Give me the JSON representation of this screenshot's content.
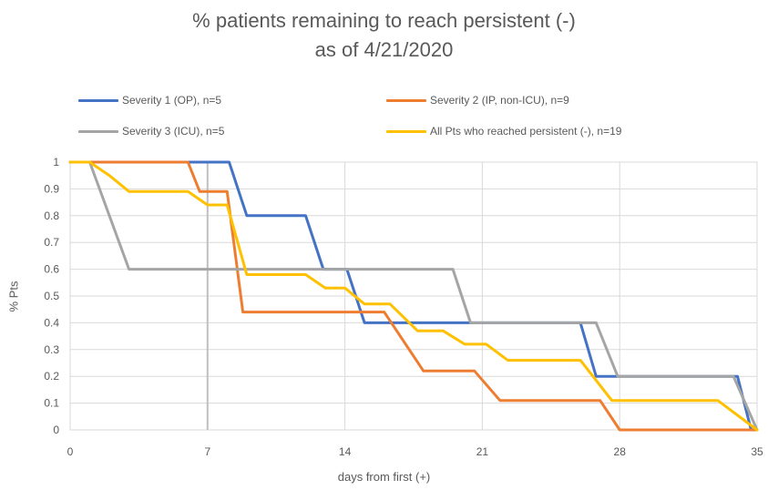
{
  "chart_data": {
    "type": "line",
    "title": "% patients remaining to reach persistent (-)",
    "subtitle": "as of 4/21/2020",
    "xlabel": "days from first (+)",
    "ylabel": "% Pts",
    "xlim": [
      0,
      35
    ],
    "ylim": [
      0,
      1
    ],
    "x_ticks": [
      "0",
      "7",
      "14",
      "21",
      "28",
      "35"
    ],
    "y_ticks": [
      "0",
      "0.1",
      "0.2",
      "0.3",
      "0.4",
      "0.5",
      "0.6",
      "0.7",
      "0.8",
      "0.9",
      "1"
    ],
    "grid": true,
    "legend_position": "top",
    "series": [
      {
        "name": "Severity 1 (OP), n=5",
        "color": "#4472C4",
        "points": [
          [
            0,
            1
          ],
          [
            8.1,
            1
          ],
          [
            9.0,
            0.8
          ],
          [
            12.0,
            0.8
          ],
          [
            12.9,
            0.6
          ],
          [
            14.1,
            0.6
          ],
          [
            15.0,
            0.4
          ],
          [
            26.0,
            0.4
          ],
          [
            26.8,
            0.2
          ],
          [
            34.0,
            0.2
          ],
          [
            34.7,
            0
          ]
        ]
      },
      {
        "name": "Severity 2 (IP, non-ICU), n=9",
        "color": "#ED7D31",
        "points": [
          [
            0,
            1
          ],
          [
            6.0,
            1
          ],
          [
            6.6,
            0.89
          ],
          [
            8.0,
            0.89
          ],
          [
            8.8,
            0.44
          ],
          [
            16.0,
            0.44
          ],
          [
            18.0,
            0.22
          ],
          [
            20.6,
            0.22
          ],
          [
            21.9,
            0.11
          ],
          [
            27.0,
            0.11
          ],
          [
            28.0,
            0
          ],
          [
            35.0,
            0
          ]
        ]
      },
      {
        "name": "Severity 3 (ICU), n=5",
        "color": "#A5A5A5",
        "points": [
          [
            0,
            1
          ],
          [
            1.0,
            1
          ],
          [
            3.0,
            0.6
          ],
          [
            19.5,
            0.6
          ],
          [
            20.4,
            0.4
          ],
          [
            26.8,
            0.4
          ],
          [
            27.9,
            0.2
          ],
          [
            33.8,
            0.2
          ],
          [
            35.0,
            0
          ]
        ]
      },
      {
        "name": "All Pts who reached persistent (-), n=19",
        "color": "#FFC000",
        "points": [
          [
            0,
            1
          ],
          [
            1.0,
            1
          ],
          [
            2.0,
            0.95
          ],
          [
            3.0,
            0.89
          ],
          [
            6.0,
            0.89
          ],
          [
            7.0,
            0.84
          ],
          [
            8.0,
            0.84
          ],
          [
            9.0,
            0.58
          ],
          [
            12.0,
            0.58
          ],
          [
            13.0,
            0.53
          ],
          [
            14.0,
            0.53
          ],
          [
            15.0,
            0.47
          ],
          [
            16.3,
            0.47
          ],
          [
            17.7,
            0.37
          ],
          [
            19.0,
            0.37
          ],
          [
            20.1,
            0.32
          ],
          [
            21.2,
            0.32
          ],
          [
            22.3,
            0.26
          ],
          [
            26.0,
            0.26
          ],
          [
            27.6,
            0.11
          ],
          [
            33.0,
            0.11
          ],
          [
            35.0,
            0
          ]
        ]
      }
    ]
  }
}
